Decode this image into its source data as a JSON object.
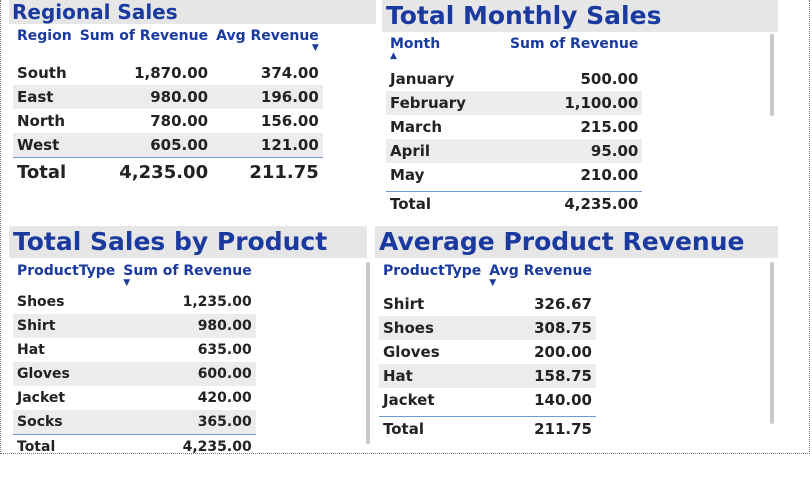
{
  "regional": {
    "title": "Regional Sales",
    "headers": [
      "Region",
      "Sum of Revenue",
      "Avg Revenue"
    ],
    "sort_icon": "triangle-down",
    "rows": [
      [
        "South",
        "1,870.00",
        "374.00"
      ],
      [
        "East",
        "980.00",
        "196.00"
      ],
      [
        "North",
        "780.00",
        "156.00"
      ],
      [
        "West",
        "605.00",
        "121.00"
      ]
    ],
    "total": [
      "Total",
      "4,235.00",
      "211.75"
    ]
  },
  "monthly": {
    "title": "Total Monthly Sales",
    "headers": [
      "Month",
      "Sum of Revenue"
    ],
    "sort_icon": "triangle-up",
    "rows": [
      [
        "January",
        "500.00"
      ],
      [
        "February",
        "1,100.00"
      ],
      [
        "March",
        "215.00"
      ],
      [
        "April",
        "95.00"
      ],
      [
        "May",
        "210.00"
      ]
    ],
    "total": [
      "Total",
      "4,235.00"
    ]
  },
  "product": {
    "title": "Total Sales by Product",
    "headers": [
      "ProductType",
      "Sum of Revenue"
    ],
    "sort_icon": "triangle-down",
    "rows": [
      [
        "Shoes",
        "1,235.00"
      ],
      [
        "Shirt",
        "980.00"
      ],
      [
        "Hat",
        "635.00"
      ],
      [
        "Gloves",
        "600.00"
      ],
      [
        "Jacket",
        "420.00"
      ],
      [
        "Socks",
        "365.00"
      ]
    ],
    "total": [
      "Total",
      "4,235.00"
    ]
  },
  "avg_product": {
    "title": "Average Product Revenue",
    "headers": [
      "ProductType",
      "Avg Revenue"
    ],
    "sort_icon": "triangle-down",
    "rows": [
      [
        "Shirt",
        "326.67"
      ],
      [
        "Shoes",
        "308.75"
      ],
      [
        "Gloves",
        "200.00"
      ],
      [
        "Hat",
        "158.75"
      ],
      [
        "Jacket",
        "140.00"
      ]
    ],
    "total": [
      "Total",
      "211.75"
    ]
  },
  "colors": {
    "title": "#1a3aa0",
    "header_band": "#e6e6e6",
    "row_alt": "#ececec",
    "rule": "#6e9ad0"
  }
}
